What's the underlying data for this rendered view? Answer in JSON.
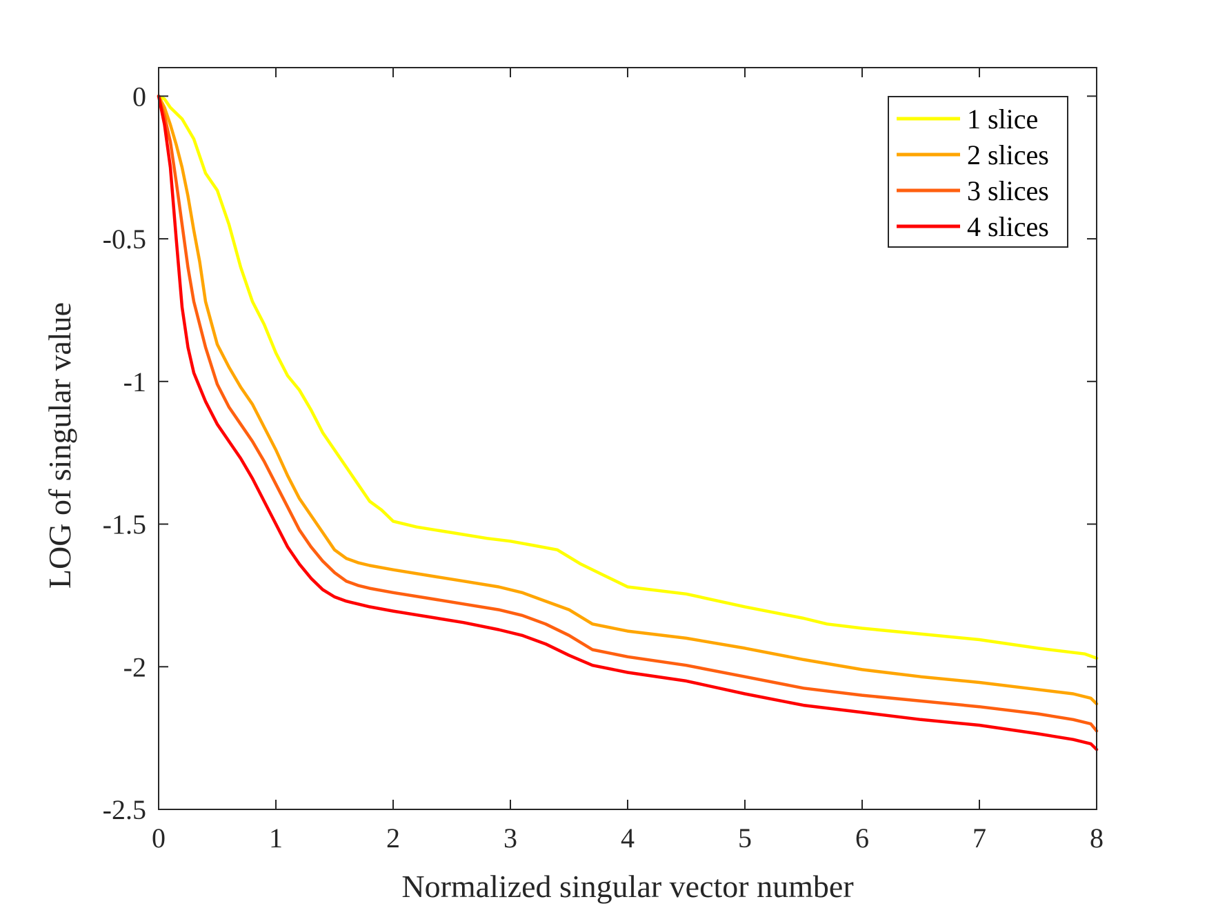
{
  "chart_data": {
    "type": "line",
    "title": "",
    "xlabel": "Normalized singular vector number",
    "ylabel": "LOG of singular value",
    "xlim": [
      0,
      8
    ],
    "ylim": [
      -2.5,
      0.1
    ],
    "xticks": [
      0,
      1,
      2,
      3,
      4,
      5,
      6,
      7,
      8
    ],
    "xtick_labels": [
      "0",
      "1",
      "2",
      "3",
      "4",
      "5",
      "6",
      "7",
      "8"
    ],
    "yticks": [
      0,
      -0.5,
      -1,
      -1.5,
      -2,
      -2.5
    ],
    "ytick_labels": [
      "0",
      "-0.5",
      "-1",
      "-1.5",
      "-2",
      "-2.5"
    ],
    "grid": false,
    "legend_position": "top-right",
    "series": [
      {
        "name": "1 slice",
        "color": "#ffff00",
        "x": [
          0,
          0.05,
          0.1,
          0.2,
          0.3,
          0.4,
          0.5,
          0.6,
          0.7,
          0.8,
          0.9,
          1.0,
          1.1,
          1.2,
          1.3,
          1.4,
          1.5,
          1.6,
          1.7,
          1.8,
          1.9,
          2.0,
          2.2,
          2.5,
          2.8,
          3.0,
          3.2,
          3.4,
          3.6,
          3.8,
          4.0,
          4.2,
          4.5,
          5.0,
          5.5,
          5.7,
          6.0,
          6.5,
          7.0,
          7.5,
          7.9,
          8.0
        ],
        "y": [
          0,
          -0.01,
          -0.04,
          -0.08,
          -0.15,
          -0.27,
          -0.33,
          -0.45,
          -0.6,
          -0.72,
          -0.8,
          -0.9,
          -0.98,
          -1.03,
          -1.1,
          -1.18,
          -1.24,
          -1.3,
          -1.36,
          -1.42,
          -1.45,
          -1.49,
          -1.51,
          -1.53,
          -1.55,
          -1.56,
          -1.575,
          -1.59,
          -1.64,
          -1.68,
          -1.72,
          -1.73,
          -1.745,
          -1.79,
          -1.83,
          -1.85,
          -1.865,
          -1.885,
          -1.905,
          -1.935,
          -1.955,
          -1.97
        ]
      },
      {
        "name": "2 slices",
        "color": "#ffa500",
        "x": [
          0,
          0.05,
          0.1,
          0.15,
          0.2,
          0.25,
          0.3,
          0.35,
          0.4,
          0.5,
          0.6,
          0.7,
          0.8,
          0.9,
          1.0,
          1.1,
          1.2,
          1.3,
          1.4,
          1.5,
          1.6,
          1.7,
          1.8,
          2.0,
          2.3,
          2.6,
          2.9,
          3.1,
          3.3,
          3.5,
          3.7,
          4.0,
          4.5,
          5.0,
          5.5,
          6.0,
          6.5,
          7.0,
          7.5,
          7.8,
          7.95,
          8.0
        ],
        "y": [
          0,
          -0.04,
          -0.1,
          -0.17,
          -0.25,
          -0.35,
          -0.47,
          -0.58,
          -0.72,
          -0.87,
          -0.95,
          -1.02,
          -1.08,
          -1.16,
          -1.24,
          -1.33,
          -1.41,
          -1.47,
          -1.53,
          -1.59,
          -1.62,
          -1.635,
          -1.645,
          -1.66,
          -1.68,
          -1.7,
          -1.72,
          -1.74,
          -1.77,
          -1.8,
          -1.85,
          -1.875,
          -1.9,
          -1.935,
          -1.975,
          -2.01,
          -2.035,
          -2.055,
          -2.08,
          -2.095,
          -2.11,
          -2.13
        ]
      },
      {
        "name": "3 slices",
        "color": "#ff6010",
        "x": [
          0,
          0.05,
          0.1,
          0.15,
          0.2,
          0.25,
          0.3,
          0.35,
          0.4,
          0.5,
          0.6,
          0.7,
          0.8,
          0.9,
          1.0,
          1.1,
          1.2,
          1.3,
          1.4,
          1.5,
          1.6,
          1.7,
          1.8,
          2.0,
          2.3,
          2.6,
          2.9,
          3.1,
          3.3,
          3.5,
          3.7,
          4.0,
          4.5,
          5.0,
          5.5,
          6.0,
          6.5,
          7.0,
          7.5,
          7.8,
          7.95,
          8.0
        ],
        "y": [
          0,
          -0.07,
          -0.16,
          -0.3,
          -0.45,
          -0.6,
          -0.72,
          -0.8,
          -0.88,
          -1.01,
          -1.09,
          -1.15,
          -1.21,
          -1.28,
          -1.36,
          -1.44,
          -1.52,
          -1.58,
          -1.63,
          -1.67,
          -1.7,
          -1.715,
          -1.725,
          -1.74,
          -1.76,
          -1.78,
          -1.8,
          -1.82,
          -1.85,
          -1.89,
          -1.94,
          -1.965,
          -1.995,
          -2.035,
          -2.075,
          -2.1,
          -2.12,
          -2.14,
          -2.165,
          -2.185,
          -2.2,
          -2.225
        ]
      },
      {
        "name": "4 slices",
        "color": "#ff0000",
        "x": [
          0,
          0.05,
          0.1,
          0.15,
          0.2,
          0.25,
          0.3,
          0.35,
          0.4,
          0.5,
          0.6,
          0.7,
          0.8,
          0.9,
          1.0,
          1.1,
          1.2,
          1.3,
          1.4,
          1.5,
          1.6,
          1.7,
          1.8,
          2.0,
          2.3,
          2.6,
          2.9,
          3.1,
          3.3,
          3.5,
          3.7,
          4.0,
          4.5,
          5.0,
          5.5,
          6.0,
          6.5,
          7.0,
          7.5,
          7.8,
          7.95,
          8.0
        ],
        "y": [
          0,
          -0.1,
          -0.25,
          -0.5,
          -0.74,
          -0.88,
          -0.97,
          -1.02,
          -1.07,
          -1.15,
          -1.21,
          -1.27,
          -1.34,
          -1.42,
          -1.5,
          -1.58,
          -1.64,
          -1.69,
          -1.73,
          -1.755,
          -1.77,
          -1.78,
          -1.79,
          -1.805,
          -1.825,
          -1.845,
          -1.87,
          -1.89,
          -1.92,
          -1.96,
          -1.995,
          -2.02,
          -2.05,
          -2.095,
          -2.135,
          -2.16,
          -2.185,
          -2.205,
          -2.235,
          -2.255,
          -2.27,
          -2.29
        ]
      }
    ]
  }
}
